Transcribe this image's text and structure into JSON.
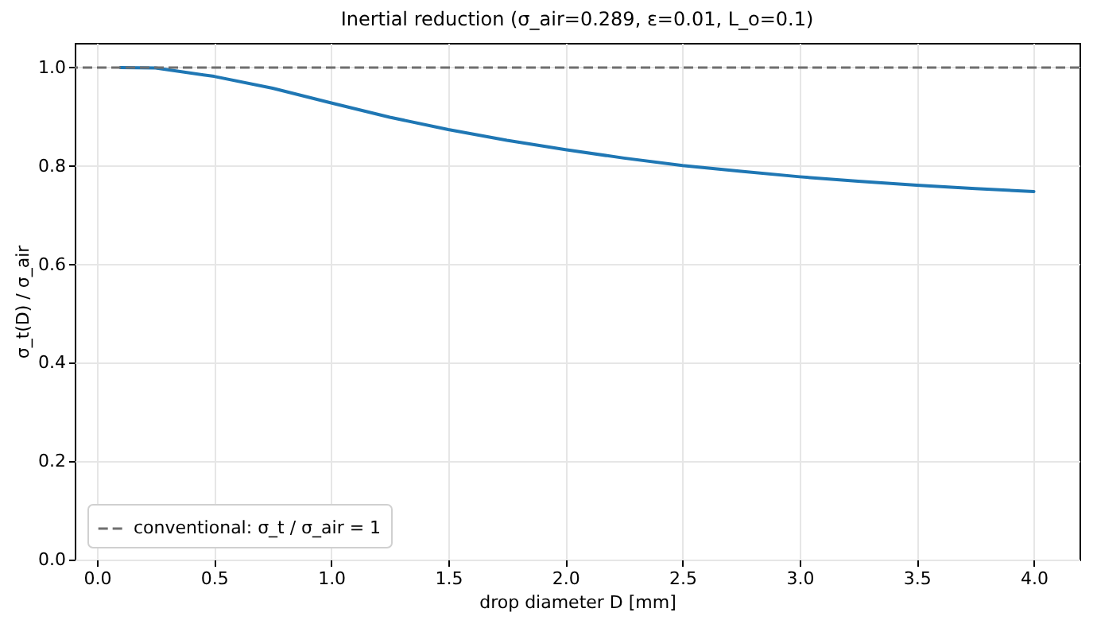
{
  "chart_data": {
    "type": "line",
    "title": "Inertial reduction (σ_air=0.289, ε=0.01, L_o=0.1)",
    "xlabel": "drop diameter D [mm]",
    "ylabel": "σ_t(D) / σ_air",
    "x": [
      0.1,
      0.25,
      0.5,
      0.75,
      1.0,
      1.25,
      1.5,
      1.75,
      2.0,
      2.25,
      2.5,
      2.75,
      3.0,
      3.25,
      3.5,
      3.75,
      4.0
    ],
    "series": [
      {
        "color": "#1f77b4",
        "values": [
          1.0,
          0.999,
          0.982,
          0.958,
          0.928,
          0.899,
          0.874,
          0.852,
          0.833,
          0.816,
          0.801,
          0.789,
          0.778,
          0.769,
          0.761,
          0.754,
          0.748
        ]
      }
    ],
    "xlim": [
      -0.095,
      4.195
    ],
    "ylim": [
      0,
      1.05
    ],
    "xticks": [
      {
        "value": 0,
        "label": "0.0"
      },
      0.5,
      {
        "value": 1,
        "label": "1.0"
      },
      1.5,
      {
        "value": 2,
        "label": "2.0"
      },
      2.5,
      {
        "value": 3,
        "label": "3.0"
      },
      3.5,
      {
        "value": 4,
        "label": "4.0"
      }
    ],
    "yticks": [
      {
        "value": 0,
        "label": "0.0"
      },
      0.2,
      0.4,
      0.6,
      0.8,
      {
        "value": 1,
        "label": "1.0"
      }
    ],
    "ref_lines": [
      {
        "axis": "y",
        "value": 1,
        "label": "conventional: σ_t / σ_air = 1",
        "color": "#6f6f6f",
        "line_style": "dashed"
      }
    ],
    "grid": true,
    "legend": "bottom left",
    "line_style": "solid",
    "marker": "none"
  }
}
